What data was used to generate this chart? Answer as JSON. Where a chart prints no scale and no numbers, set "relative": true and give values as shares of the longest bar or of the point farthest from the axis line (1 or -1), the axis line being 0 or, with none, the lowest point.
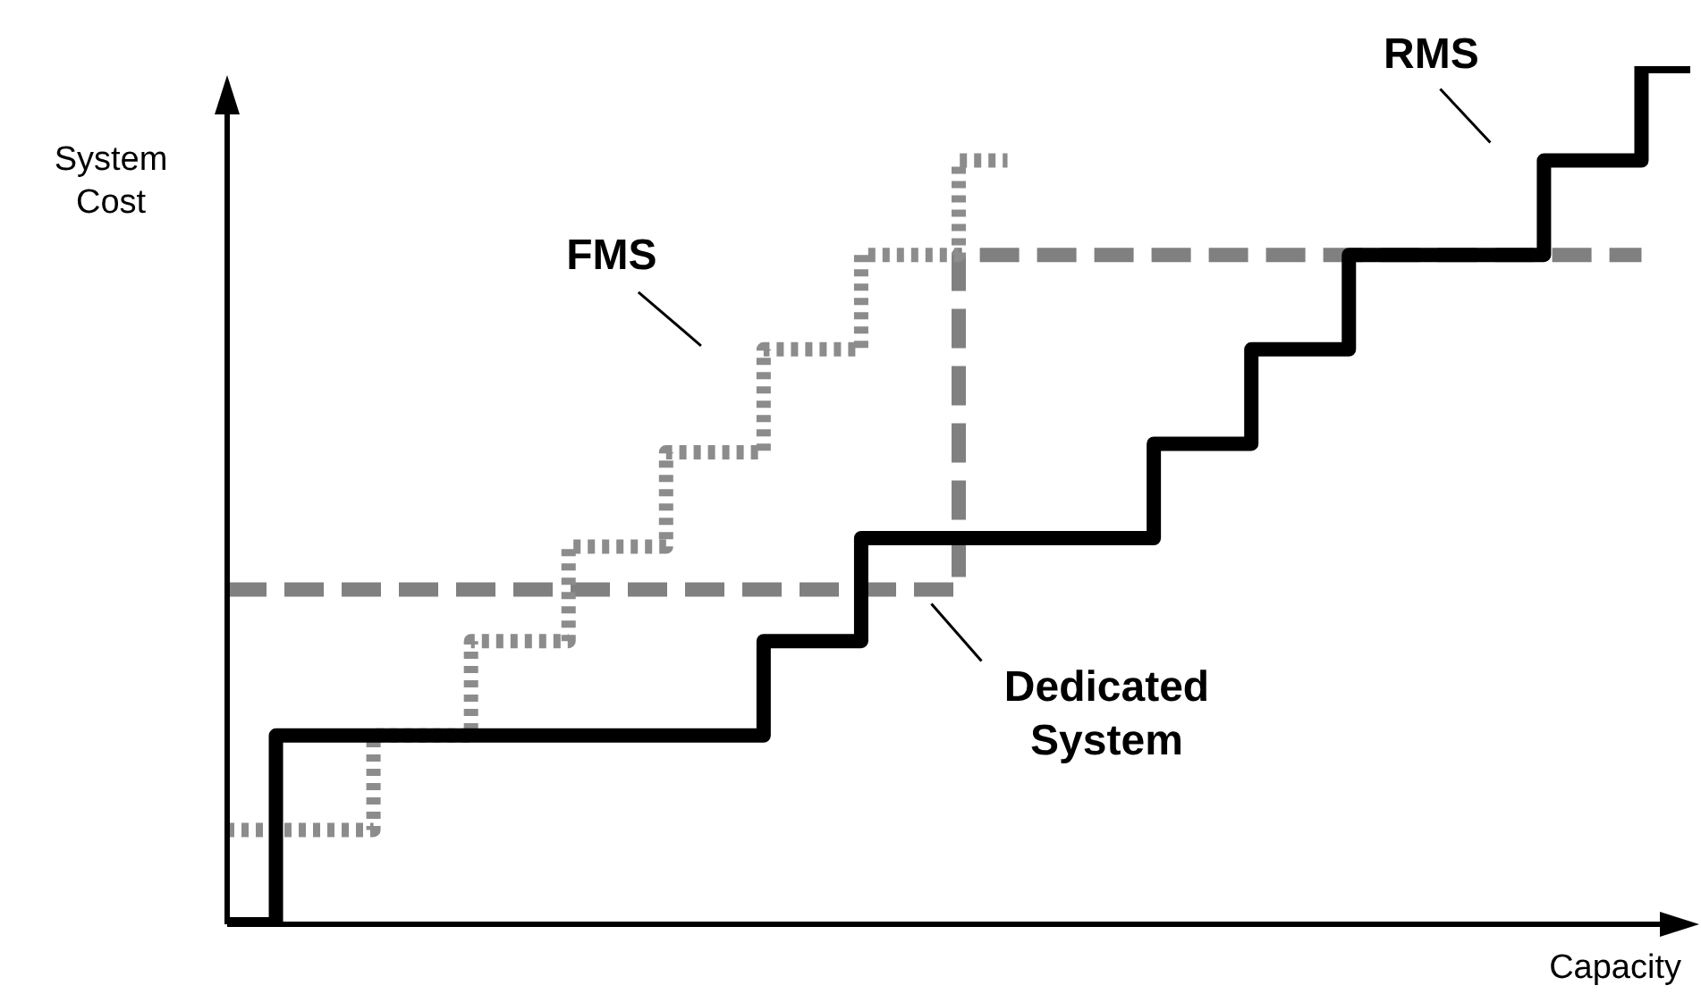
{
  "chart_data": {
    "type": "step",
    "relative": true,
    "xlabel": "Capacity",
    "ylabel": "System Cost",
    "categories": [
      null,
      null,
      null,
      null,
      null,
      null,
      null,
      null,
      null,
      null,
      null,
      null,
      null,
      null,
      null,
      null,
      null,
      null,
      null,
      null,
      null,
      null,
      null,
      null,
      null,
      null,
      null,
      null,
      null,
      null,
      null
    ],
    "series": [
      {
        "name": "RMS",
        "color": "#000000",
        "line_style": "solid",
        "values": [
          0,
          0.22,
          0.22,
          0.22,
          0.22,
          0.22,
          0.22,
          0.22,
          0.22,
          0.22,
          0.22,
          0.33,
          0.33,
          0.45,
          0.45,
          0.45,
          0.45,
          0.45,
          0.45,
          0.56,
          0.56,
          0.67,
          0.67,
          0.78,
          0.78,
          0.78,
          0.78,
          0.89,
          0.89,
          1,
          1
        ]
      },
      {
        "name": "FMS",
        "color": "#8c8c8c",
        "line_style": "dotted",
        "values": [
          0.11,
          0.11,
          0.11,
          0.22,
          0.22,
          0.33,
          0.33,
          0.44,
          0.44,
          0.55,
          0.55,
          0.67,
          0.67,
          0.78,
          0.78,
          0.89,
          0.89,
          null,
          null,
          null,
          null,
          null,
          null,
          null,
          null,
          null,
          null,
          null,
          null,
          null,
          null
        ]
      },
      {
        "name": "Dedicated System",
        "color": "#808080",
        "line_style": "dashed",
        "values": [
          0.39,
          0.39,
          0.39,
          0.39,
          0.39,
          0.39,
          0.39,
          0.39,
          0.39,
          0.39,
          0.39,
          0.39,
          0.39,
          0.39,
          0.39,
          0.78,
          0.78,
          0.78,
          0.78,
          0.78,
          0.78,
          0.78,
          0.78,
          0.78,
          0.78,
          0.78,
          0.78,
          0.78,
          0.78,
          0.78,
          null
        ]
      }
    ],
    "legend": false,
    "tick_labels": false,
    "marker": "none"
  }
}
